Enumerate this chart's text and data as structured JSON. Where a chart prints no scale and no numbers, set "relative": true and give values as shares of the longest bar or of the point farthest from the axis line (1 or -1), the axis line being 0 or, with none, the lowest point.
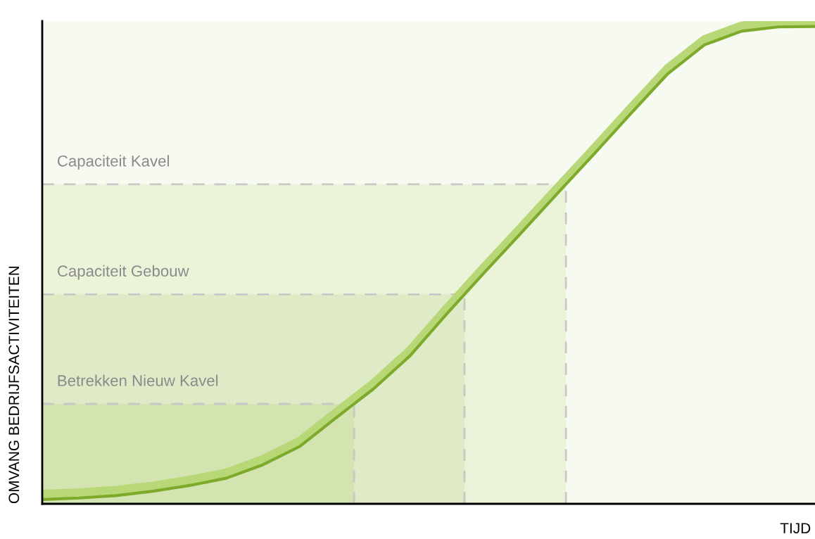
{
  "chart_data": {
    "type": "line",
    "relative": true,
    "ylabel": "OMVANG BEDRIJFSACTIVITEITEN",
    "xlabel": "TIJD",
    "categories": [
      null,
      null,
      null,
      null,
      null,
      null,
      null,
      null,
      null,
      null,
      null,
      null,
      null,
      null,
      null,
      null,
      null,
      null,
      null,
      null,
      null,
      null
    ],
    "series": [
      {
        "color": "#b8d878",
        "values": [
          0.02,
          0.023,
          0.028,
          0.037,
          0.049,
          0.064,
          0.092,
          0.13,
          0.19,
          0.249,
          0.318,
          0.405,
          0.489,
          0.571,
          0.654,
          0.736,
          0.82,
          0.902,
          0.962,
          0.99,
          0.999,
          1
        ]
      },
      {
        "color": "#7daa2a",
        "values": [
          0.009,
          0.012,
          0.017,
          0.026,
          0.038,
          0.053,
          0.081,
          0.119,
          0.179,
          0.238,
          0.307,
          0.394,
          0.478,
          0.56,
          0.643,
          0.725,
          0.809,
          0.891,
          0.951,
          0.979,
          0.988,
          0.989
        ]
      }
    ],
    "ref_lines": [
      {
        "axis": "y",
        "value": 0.662,
        "label": "Capaciteit Kavel",
        "color": "#c8c8c8",
        "line_style": "dashed"
      },
      {
        "axis": "y",
        "value": 0.434,
        "label": "Capaciteit Gebouw",
        "color": "#c8c8c8",
        "line_style": "dashed"
      },
      {
        "axis": "y",
        "value": 0.207,
        "label": "Betrekken Nieuw Kavel",
        "color": "#c8c8c8",
        "line_style": "dashed"
      }
    ],
    "legend": false,
    "marker": "none",
    "line_style": "solid"
  }
}
